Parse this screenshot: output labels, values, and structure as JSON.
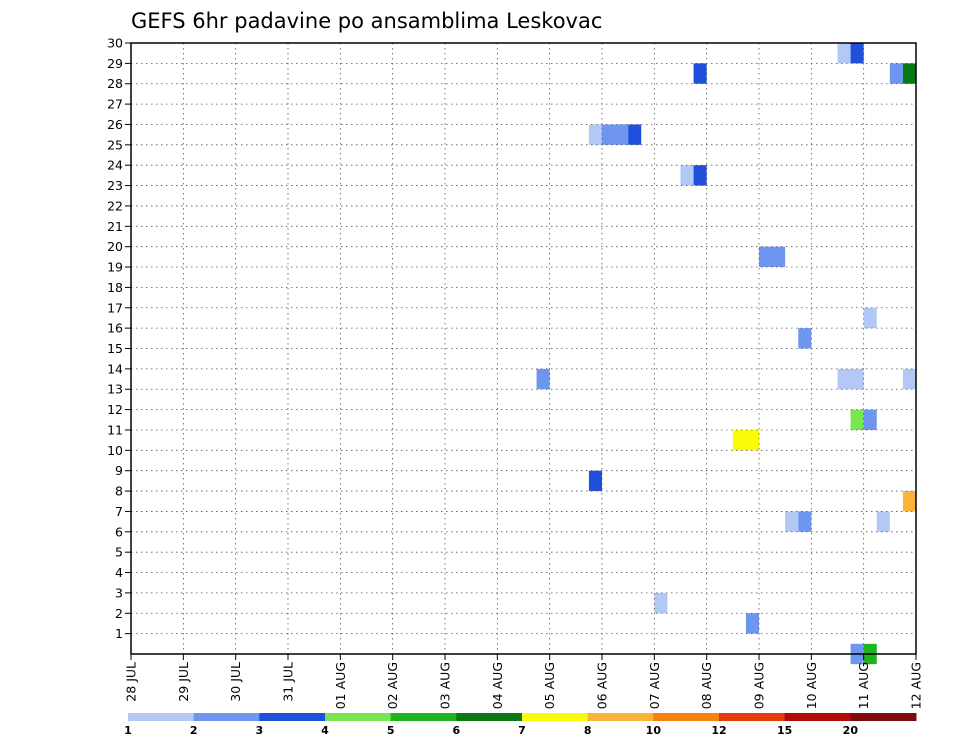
{
  "chart_data": {
    "type": "heatmap",
    "title": "GEFS 6hr padavine po ansamblima Leskovac",
    "x_labels": [
      "28 JUL",
      "29 JUL",
      "30 JUL",
      "31 JUL",
      "01 AUG",
      "02 AUG",
      "03 AUG",
      "04 AUG",
      "05 AUG",
      "06 AUG",
      "07 AUG",
      "08 AUG",
      "09 AUG",
      "10 AUG",
      "11 AUG",
      "12 AUG"
    ],
    "y_labels": [
      "1",
      "2",
      "3",
      "4",
      "5",
      "6",
      "7",
      "8",
      "9",
      "10",
      "11",
      "12",
      "13",
      "14",
      "15",
      "16",
      "17",
      "18",
      "19",
      "20",
      "21",
      "22",
      "23",
      "24",
      "25",
      "26",
      "27",
      "28",
      "29",
      "30"
    ],
    "x_range_days": [
      0,
      15
    ],
    "y_range": [
      0,
      30
    ],
    "grid": true,
    "legend": {
      "position": "bottom",
      "colors": [
        "#b4c8f5",
        "#6e96f0",
        "#1e50dc",
        "#78e650",
        "#1eb41e",
        "#0a7814",
        "#fafa0a",
        "#fab43c",
        "#f5820a",
        "#e13c0a",
        "#b40a0a",
        "#820a0a"
      ],
      "labels": [
        "1",
        "2",
        "3",
        "4",
        "5",
        "6",
        "7",
        "8",
        "10",
        "12",
        "15",
        "20"
      ]
    },
    "cells_note": "x = forecast time in days after 28 JUL 00z, w = duration in days, y = ensemble member row (lower edge), v = colour class index",
    "cells": [
      {
        "x": 13.5,
        "w": 0.25,
        "y": 29,
        "v": 0
      },
      {
        "x": 13.75,
        "w": 0.25,
        "y": 29,
        "v": 2
      },
      {
        "x": 10.75,
        "w": 0.25,
        "y": 28,
        "v": 2
      },
      {
        "x": 14.5,
        "w": 0.25,
        "y": 28,
        "v": 1
      },
      {
        "x": 14.75,
        "w": 0.25,
        "y": 28,
        "v": 5
      },
      {
        "x": 8.75,
        "w": 0.25,
        "y": 25,
        "v": 0
      },
      {
        "x": 9.0,
        "w": 0.5,
        "y": 25,
        "v": 1
      },
      {
        "x": 9.5,
        "w": 0.25,
        "y": 25,
        "v": 2
      },
      {
        "x": 10.5,
        "w": 0.25,
        "y": 23,
        "v": 0
      },
      {
        "x": 10.75,
        "w": 0.25,
        "y": 23,
        "v": 2
      },
      {
        "x": 12.0,
        "w": 0.5,
        "y": 19,
        "v": 1
      },
      {
        "x": 14.0,
        "w": 0.25,
        "y": 16,
        "v": 0
      },
      {
        "x": 12.75,
        "w": 0.25,
        "y": 15,
        "v": 1
      },
      {
        "x": 7.75,
        "w": 0.25,
        "y": 13,
        "v": 1
      },
      {
        "x": 13.5,
        "w": 0.5,
        "y": 13,
        "v": 0
      },
      {
        "x": 14.75,
        "w": 0.25,
        "y": 13,
        "v": 0
      },
      {
        "x": 13.75,
        "w": 0.25,
        "y": 11,
        "v": 3
      },
      {
        "x": 14.0,
        "w": 0.25,
        "y": 11,
        "v": 1
      },
      {
        "x": 11.5,
        "w": 0.5,
        "y": 10,
        "v": 6
      },
      {
        "x": 8.75,
        "w": 0.25,
        "y": 8,
        "v": 2
      },
      {
        "x": 14.75,
        "w": 0.25,
        "y": 7,
        "v": 7
      },
      {
        "x": 12.5,
        "w": 0.25,
        "y": 6,
        "v": 0
      },
      {
        "x": 12.75,
        "w": 0.25,
        "y": 6,
        "v": 1
      },
      {
        "x": 14.25,
        "w": 0.25,
        "y": 6,
        "v": 0
      },
      {
        "x": 10.0,
        "w": 0.25,
        "y": 2,
        "v": 0
      },
      {
        "x": 11.75,
        "w": 0.25,
        "y": 1,
        "v": 1
      },
      {
        "x": 13.75,
        "w": 0.25,
        "y": -0.5,
        "v": 1
      },
      {
        "x": 14.0,
        "w": 0.25,
        "y": -0.5,
        "v": 4
      }
    ]
  }
}
